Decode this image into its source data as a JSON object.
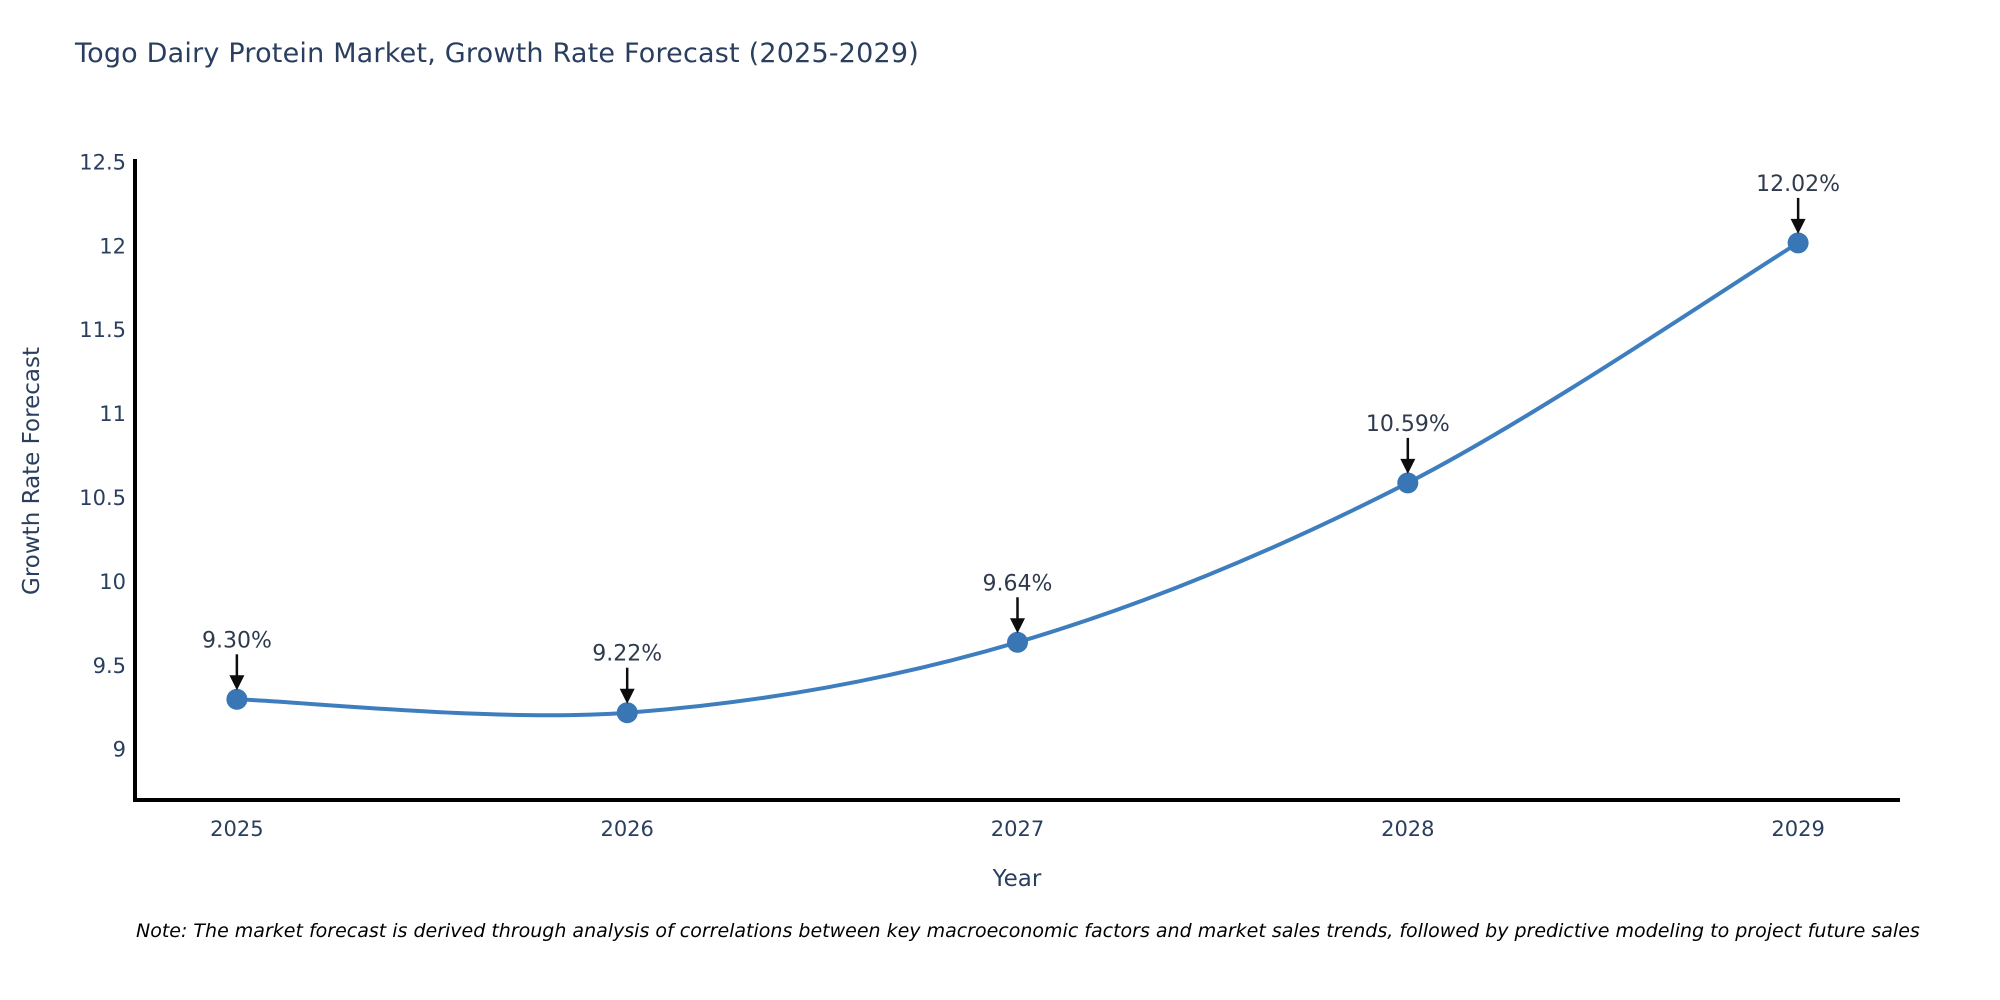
{
  "title": "Togo Dairy Protein Market, Growth Rate Forecast (2025-2029)",
  "note": "Note: The market forecast is derived through analysis of correlations between key macroeconomic factors and market sales trends, followed by predictive modeling to project future sales",
  "chart_data": {
    "type": "line",
    "title": "Togo Dairy Protein Market, Growth Rate Forecast (2025-2029)",
    "x": [
      2025,
      2026,
      2027,
      2028,
      2029
    ],
    "series": [
      {
        "name": "Growth Rate Forecast",
        "values": [
          9.3,
          9.22,
          9.64,
          10.59,
          12.02
        ]
      }
    ],
    "point_labels": [
      "9.30%",
      "9.22%",
      "9.64%",
      "10.59%",
      "12.02%"
    ],
    "xlabel": "Year",
    "ylabel": "Growth Rate Forecast",
    "xticks": [
      "2025",
      "2026",
      "2027",
      "2028",
      "2029"
    ],
    "yticks": [
      9,
      9.5,
      10,
      10.5,
      11,
      11.5,
      12,
      12.5
    ],
    "xlim": [
      2024.739,
      2029.261
    ],
    "ylim": [
      8.7,
      12.52
    ],
    "line_shape": "spline",
    "grid": false,
    "legend": "none",
    "colors": {
      "line": "#3e7ebe",
      "marker": "#3876b6",
      "axis": "#000000",
      "text": "#2a3f5f",
      "annotation_text": "#2f3a4d",
      "arrow": "#0d0d0d",
      "background": "#ffffff"
    }
  }
}
